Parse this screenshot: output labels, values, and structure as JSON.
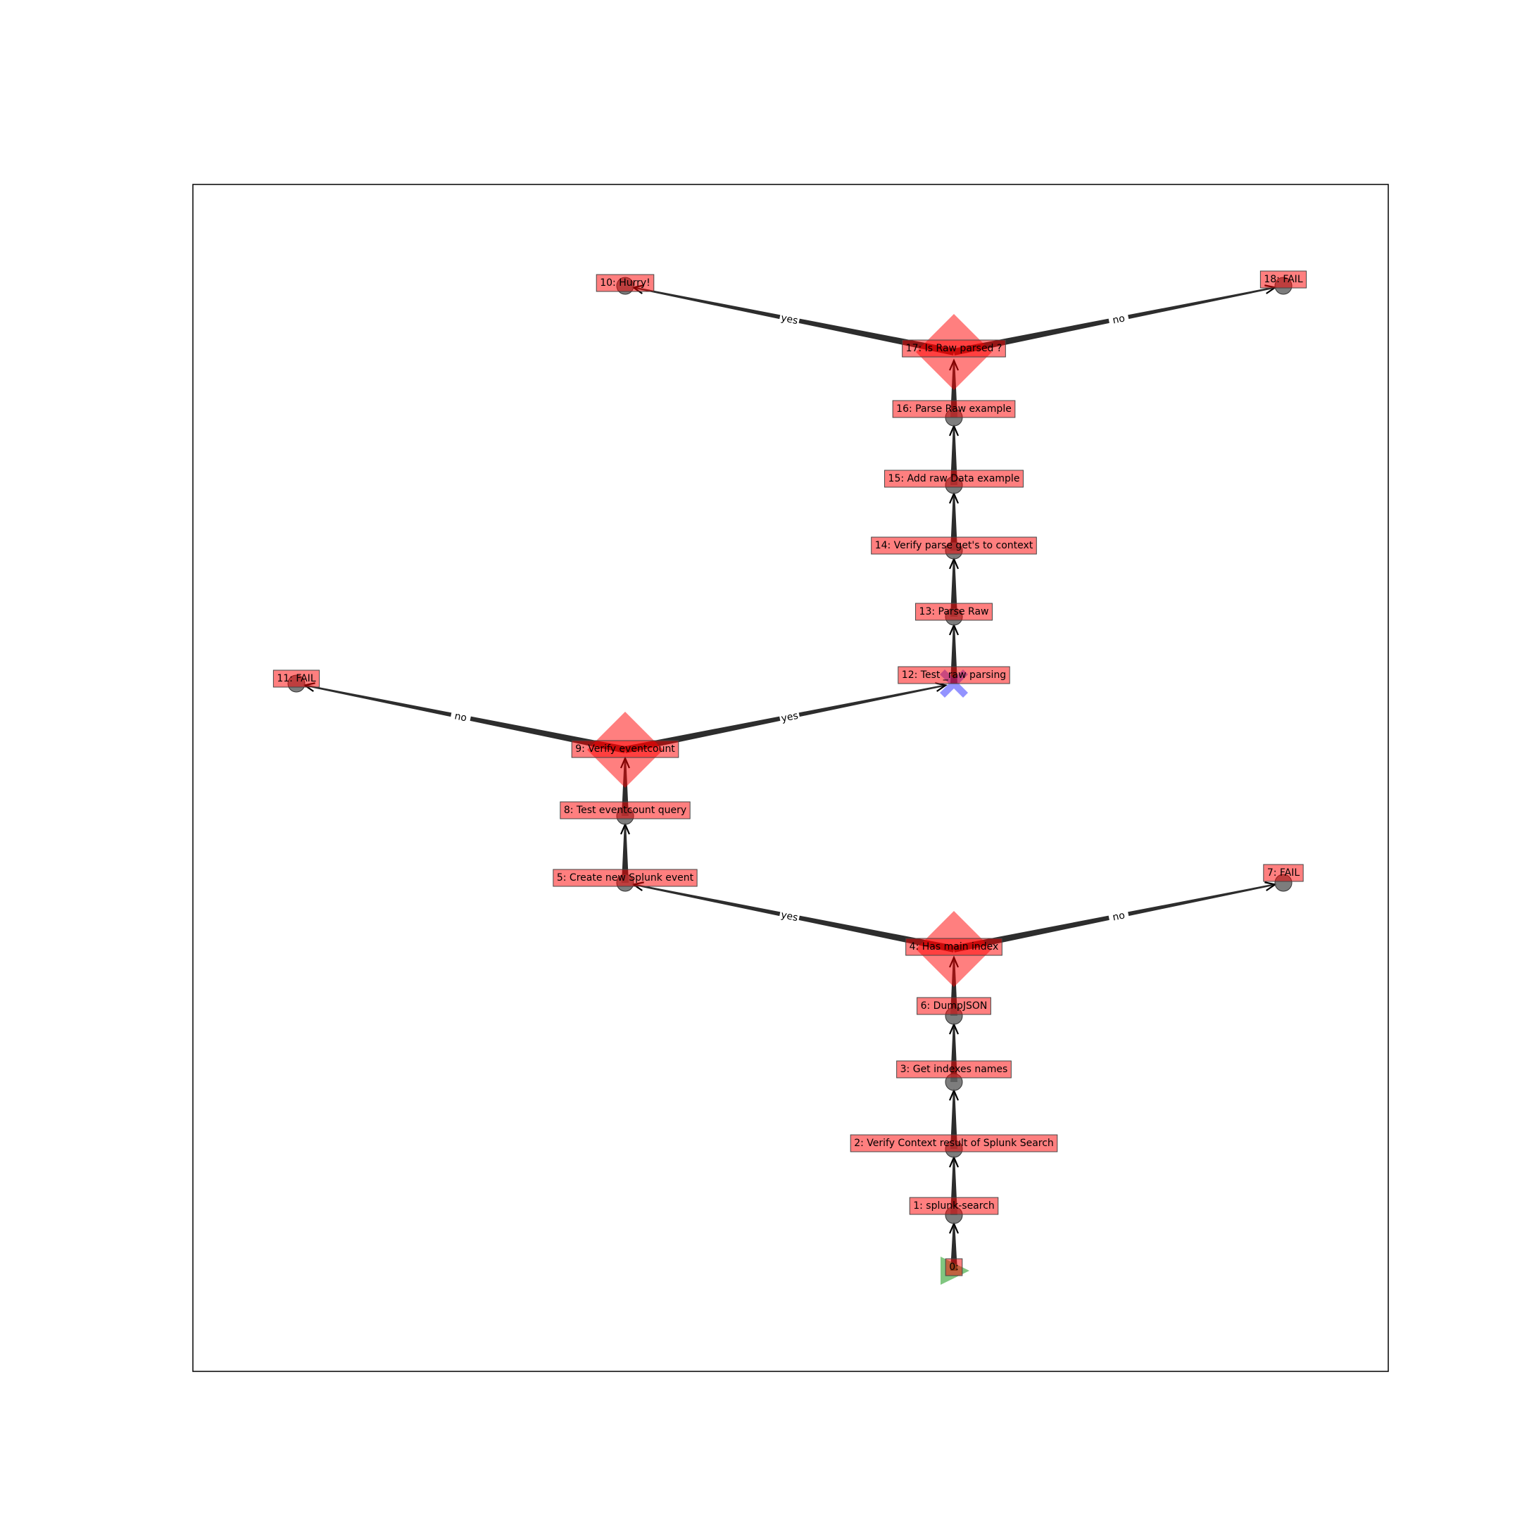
{
  "colors": {
    "edge": "#222222",
    "label_fill": "#ff0000",
    "label_border": "#444444",
    "task_node": "#666666",
    "decision_node": "#ff0000",
    "start_node": "#2ca02c",
    "merge_node": "#3a3aff",
    "frame": "#000000"
  },
  "nodes": [
    {
      "id": "0",
      "label": "0:",
      "shape": "start-triangle"
    },
    {
      "id": "1",
      "label": "1: splunk-search",
      "shape": "circle"
    },
    {
      "id": "2",
      "label": "2: Verify Context result of Splunk Search",
      "shape": "circle"
    },
    {
      "id": "3",
      "label": "3: Get indexes names",
      "shape": "circle"
    },
    {
      "id": "6",
      "label": "6: DumpJSON",
      "shape": "circle"
    },
    {
      "id": "4",
      "label": "4: Has main index",
      "shape": "diamond"
    },
    {
      "id": "5",
      "label": "5: Create new Splunk event",
      "shape": "circle"
    },
    {
      "id": "7",
      "label": "7: FAIL",
      "shape": "circle"
    },
    {
      "id": "8",
      "label": "8: Test eventcount query",
      "shape": "circle"
    },
    {
      "id": "9",
      "label": "9: Verify eventcount",
      "shape": "diamond"
    },
    {
      "id": "11",
      "label": "11: FAIL",
      "shape": "circle"
    },
    {
      "id": "12",
      "label": "12: Test _raw parsing",
      "shape": "x-mark"
    },
    {
      "id": "13",
      "label": "13: Parse Raw",
      "shape": "circle"
    },
    {
      "id": "14",
      "label": "14: Verify parse get's to context",
      "shape": "circle"
    },
    {
      "id": "15",
      "label": "15: Add raw Data example",
      "shape": "circle"
    },
    {
      "id": "16",
      "label": "16: Parse Raw example",
      "shape": "circle"
    },
    {
      "id": "17",
      "label": "17: Is Raw parsed ?",
      "shape": "diamond"
    },
    {
      "id": "10",
      "label": "10: Hurry!",
      "shape": "circle"
    },
    {
      "id": "18",
      "label": "18: FAIL",
      "shape": "circle"
    }
  ],
  "edges": [
    {
      "from": "0",
      "to": "1",
      "label": ""
    },
    {
      "from": "1",
      "to": "2",
      "label": ""
    },
    {
      "from": "2",
      "to": "3",
      "label": ""
    },
    {
      "from": "3",
      "to": "6",
      "label": ""
    },
    {
      "from": "6",
      "to": "4",
      "label": ""
    },
    {
      "from": "4",
      "to": "5",
      "label": "yes"
    },
    {
      "from": "4",
      "to": "7",
      "label": "no"
    },
    {
      "from": "5",
      "to": "8",
      "label": ""
    },
    {
      "from": "8",
      "to": "9",
      "label": ""
    },
    {
      "from": "9",
      "to": "12",
      "label": "yes"
    },
    {
      "from": "9",
      "to": "11",
      "label": "no"
    },
    {
      "from": "12",
      "to": "13",
      "label": ""
    },
    {
      "from": "13",
      "to": "14",
      "label": ""
    },
    {
      "from": "14",
      "to": "15",
      "label": ""
    },
    {
      "from": "15",
      "to": "16",
      "label": ""
    },
    {
      "from": "16",
      "to": "17",
      "label": ""
    },
    {
      "from": "17",
      "to": "10",
      "label": "yes"
    },
    {
      "from": "17",
      "to": "18",
      "label": "no"
    }
  ]
}
